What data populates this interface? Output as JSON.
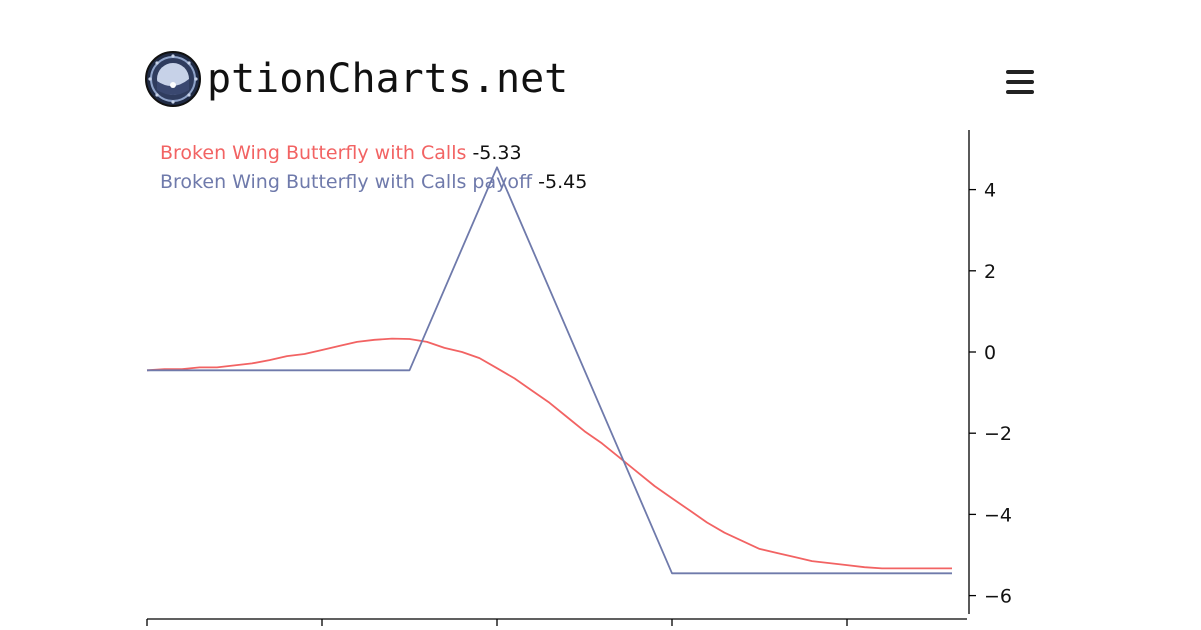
{
  "header": {
    "logo_icon": "porthole-logo-icon",
    "site_name": "ptionCharts.net",
    "menu_icon": "hamburger-menu-icon"
  },
  "chart_data": {
    "type": "line",
    "title": "",
    "xlabel": "",
    "ylabel": "",
    "ylim": [
      -6.6,
      5.4
    ],
    "xlim": [
      0,
      100
    ],
    "yticks": [
      4,
      2,
      0,
      -2,
      -4,
      -6
    ],
    "ytick_labels": [
      "4",
      "2",
      "0",
      "−2",
      "−4",
      "−6"
    ],
    "xticks": [
      0,
      20,
      40,
      60,
      80
    ],
    "y_axis_position": "right",
    "grid": false,
    "legend_placement": "top-left",
    "series": [
      {
        "name": "Broken Wing Butterfly with Calls",
        "last_value": "-5.33",
        "color": "#f26363",
        "x": [
          0,
          2,
          4,
          6,
          8,
          10,
          12,
          14,
          16,
          18,
          20,
          22,
          24,
          26,
          28,
          30,
          32,
          34,
          36,
          38,
          40,
          42,
          44,
          46,
          48,
          50,
          52,
          54,
          56,
          58,
          60,
          62,
          64,
          66,
          68,
          70,
          72,
          74,
          76,
          78,
          80,
          82,
          84,
          86,
          88,
          90,
          92
        ],
        "values": [
          -0.45,
          -0.42,
          -0.42,
          -0.38,
          -0.38,
          -0.33,
          -0.28,
          -0.2,
          -0.1,
          -0.05,
          0.05,
          0.15,
          0.25,
          0.3,
          0.33,
          0.32,
          0.25,
          0.1,
          0.0,
          -0.15,
          -0.4,
          -0.65,
          -0.95,
          -1.25,
          -1.6,
          -1.95,
          -2.25,
          -2.6,
          -2.95,
          -3.3,
          -3.6,
          -3.9,
          -4.2,
          -4.45,
          -4.65,
          -4.85,
          -4.95,
          -5.05,
          -5.15,
          -5.2,
          -5.25,
          -5.3,
          -5.33,
          -5.33,
          -5.33,
          -5.33,
          -5.33
        ]
      },
      {
        "name": "Broken Wing Butterfly with Calls payoff",
        "last_value": "-5.45",
        "color": "#6f7aab",
        "x": [
          0,
          30,
          40,
          60,
          92
        ],
        "values": [
          -0.45,
          -0.45,
          4.55,
          -5.45,
          -5.45
        ]
      }
    ]
  }
}
